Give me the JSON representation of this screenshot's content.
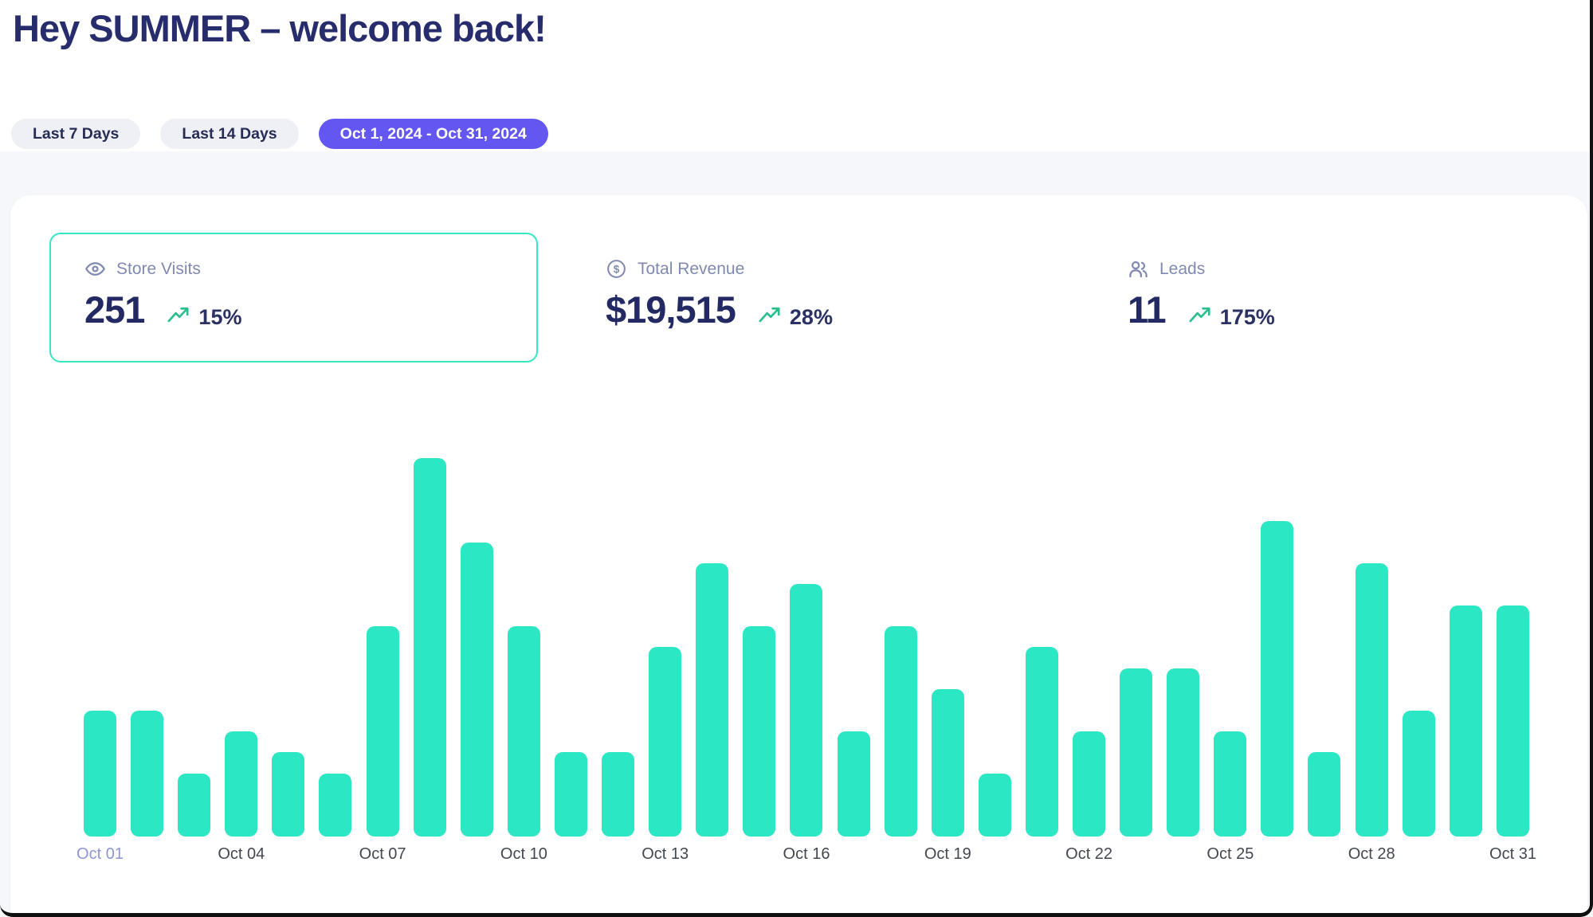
{
  "header": {
    "title": "Hey SUMMER – welcome back!"
  },
  "filters": [
    {
      "label": "Last 7 Days",
      "active": false
    },
    {
      "label": "Last 14 Days",
      "active": false
    },
    {
      "label": "Oct 1, 2024 - Oct 31, 2024",
      "active": true
    }
  ],
  "stats": [
    {
      "icon": "eye-icon",
      "label": "Store Visits",
      "value": "251",
      "trend_pct": "15%",
      "highlighted": true
    },
    {
      "icon": "dollar-circle-icon",
      "label": "Total Revenue",
      "value": "$19,515",
      "trend_pct": "28%",
      "highlighted": false
    },
    {
      "icon": "users-icon",
      "label": "Leads",
      "value": "11",
      "trend_pct": "175%",
      "highlighted": false
    }
  ],
  "colors": {
    "accent_teal": "#2BE7C3",
    "teal_card_border": "#35E8C4",
    "accent_purple": "#6456F0",
    "navy_text": "#262B66",
    "muted_label": "#7F89B2",
    "trend_green": "#2ABE8C",
    "tick_highlight": "#8D95D4"
  },
  "chart_data": {
    "type": "bar",
    "metric": "Store Visits",
    "x": [
      "Oct 01",
      "Oct 02",
      "Oct 03",
      "Oct 04",
      "Oct 05",
      "Oct 06",
      "Oct 07",
      "Oct 08",
      "Oct 09",
      "Oct 10",
      "Oct 11",
      "Oct 12",
      "Oct 13",
      "Oct 14",
      "Oct 15",
      "Oct 16",
      "Oct 17",
      "Oct 18",
      "Oct 19",
      "Oct 20",
      "Oct 21",
      "Oct 22",
      "Oct 23",
      "Oct 24",
      "Oct 25",
      "Oct 26",
      "Oct 27",
      "Oct 28",
      "Oct 29",
      "Oct 30",
      "Oct 31"
    ],
    "values": [
      6,
      6,
      3,
      5,
      4,
      3,
      10,
      18,
      14,
      10,
      4,
      4,
      9,
      13,
      10,
      12,
      5,
      10,
      7,
      3,
      9,
      5,
      8,
      8,
      5,
      15,
      4,
      13,
      6,
      11,
      11
    ],
    "total": 251,
    "tick_labels": [
      "Oct 01",
      "Oct 04",
      "Oct 07",
      "Oct 10",
      "Oct 13",
      "Oct 16",
      "Oct 19",
      "Oct 22",
      "Oct 25",
      "Oct 28",
      "Oct 31"
    ],
    "highlighted_tick": "Oct 01",
    "bar_color": "#2BE7C3",
    "ylim": [
      0,
      18
    ],
    "grid": false,
    "legend": false
  }
}
